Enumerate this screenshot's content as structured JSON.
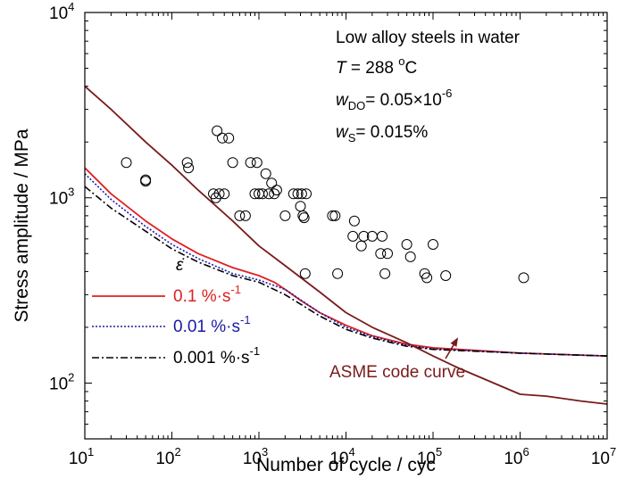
{
  "chart_data": {
    "type": "line",
    "title": "",
    "xlabel": "Number of cycle / cyc",
    "ylabel": "Stress amplitude / MPa",
    "xscale": "log",
    "yscale": "log",
    "xlim": [
      10,
      10000000
    ],
    "ylim": [
      50,
      10000
    ],
    "grid": false,
    "x_ticks": [
      {
        "base": "10",
        "exp": "1",
        "value": 10
      },
      {
        "base": "10",
        "exp": "2",
        "value": 100
      },
      {
        "base": "10",
        "exp": "3",
        "value": 1000
      },
      {
        "base": "10",
        "exp": "4",
        "value": 10000
      },
      {
        "base": "10",
        "exp": "5",
        "value": 100000
      },
      {
        "base": "10",
        "exp": "6",
        "value": 1000000
      },
      {
        "base": "10",
        "exp": "7",
        "value": 10000000
      }
    ],
    "y_ticks": [
      {
        "base": "10",
        "exp": "2",
        "value": 100
      },
      {
        "base": "10",
        "exp": "3",
        "value": 1000
      },
      {
        "base": "10",
        "exp": "4",
        "value": 10000
      }
    ],
    "annotation": {
      "line1": "Low alloy steels in water",
      "line2": {
        "sym": "T",
        "rest": " = 288 ",
        "sup": "o",
        "unit": "C"
      },
      "line3": {
        "sym": "w",
        "sub": "DO",
        "rest": "= 0.05×10",
        "sup": "-6"
      },
      "line4": {
        "sym": "w",
        "sub": "S",
        "rest": "= 0.015%"
      }
    },
    "legend": {
      "placement": "bottom-left",
      "symbol": "ε̇",
      "entries": [
        {
          "base": "0.1 %·s",
          "sup": "-1",
          "color": "#e02020",
          "dash": "solid"
        },
        {
          "base": "0.01 %·s",
          "sup": "-1",
          "color": "#1a1aa6",
          "dash": "dotted"
        },
        {
          "base": "0.001 %·s",
          "sup": "-1",
          "color": "#000000",
          "dash": "dashdot"
        }
      ]
    },
    "asme_label": "ASME code curve",
    "series": [
      {
        "name": "ASME code curve",
        "color": "#7a1a1a",
        "dash": "solid",
        "x": [
          10,
          20,
          50,
          100,
          200,
          500,
          1000,
          2000,
          5000,
          10000,
          20000,
          50000,
          100000,
          200000,
          500000,
          1000000,
          2000000,
          5000000,
          10000000
        ],
        "y": [
          4000,
          3000,
          2000,
          1500,
          1100,
          750,
          550,
          430,
          310,
          240,
          200,
          165,
          140,
          120,
          100,
          87,
          85,
          80,
          77
        ]
      },
      {
        "name": "0.1 %·s-1",
        "color": "#e02020",
        "dash": "solid",
        "x": [
          10,
          20,
          50,
          100,
          200,
          500,
          1000,
          1500,
          2000,
          3000,
          5000,
          10000,
          20000,
          50000,
          100000,
          1000000,
          10000000
        ],
        "y": [
          1450,
          1050,
          750,
          600,
          500,
          420,
          380,
          350,
          320,
          280,
          240,
          205,
          180,
          162,
          155,
          145,
          140
        ]
      },
      {
        "name": "0.01 %·s-1",
        "color": "#1a1aa6",
        "dash": "dotted",
        "x": [
          10,
          20,
          50,
          100,
          200,
          500,
          1000,
          2000,
          5000,
          10000,
          20000,
          50000,
          100000,
          1000000,
          10000000
        ],
        "y": [
          1350,
          980,
          700,
          560,
          470,
          390,
          360,
          320,
          240,
          200,
          178,
          160,
          153,
          145,
          140
        ]
      },
      {
        "name": "0.001 %·s-1",
        "color": "#000000",
        "dash": "dashdot",
        "x": [
          10,
          20,
          50,
          100,
          200,
          500,
          1000,
          2000,
          5000,
          10000,
          20000,
          50000,
          100000,
          1000000,
          10000000
        ],
        "y": [
          1150,
          880,
          660,
          530,
          450,
          380,
          350,
          300,
          230,
          195,
          175,
          158,
          152,
          145,
          140
        ]
      }
    ],
    "scatter": {
      "name": "",
      "marker": "open-circle",
      "points": [
        [
          30,
          1550
        ],
        [
          50,
          1250
        ],
        [
          50,
          1230
        ],
        [
          150,
          1550
        ],
        [
          155,
          1450
        ],
        [
          300,
          1050
        ],
        [
          320,
          1000
        ],
        [
          330,
          2300
        ],
        [
          350,
          1050
        ],
        [
          380,
          2100
        ],
        [
          400,
          1050
        ],
        [
          450,
          2100
        ],
        [
          500,
          1550
        ],
        [
          600,
          800
        ],
        [
          700,
          800
        ],
        [
          800,
          1550
        ],
        [
          900,
          1050
        ],
        [
          950,
          1550
        ],
        [
          1000,
          1050
        ],
        [
          1100,
          1050
        ],
        [
          1200,
          1350
        ],
        [
          1300,
          1050
        ],
        [
          1400,
          1200
        ],
        [
          1500,
          1050
        ],
        [
          1600,
          1100
        ],
        [
          2000,
          800
        ],
        [
          2500,
          1050
        ],
        [
          2800,
          1050
        ],
        [
          3000,
          900
        ],
        [
          3100,
          1050
        ],
        [
          3200,
          800
        ],
        [
          3300,
          780
        ],
        [
          3400,
          390
        ],
        [
          3500,
          1050
        ],
        [
          7000,
          800
        ],
        [
          7500,
          800
        ],
        [
          8000,
          390
        ],
        [
          12000,
          620
        ],
        [
          12500,
          750
        ],
        [
          15000,
          550
        ],
        [
          16000,
          620
        ],
        [
          20000,
          620
        ],
        [
          25000,
          500
        ],
        [
          26000,
          620
        ],
        [
          28000,
          390
        ],
        [
          30000,
          500
        ],
        [
          50000,
          560
        ],
        [
          55000,
          480
        ],
        [
          80000,
          390
        ],
        [
          85000,
          370
        ],
        [
          100000,
          560
        ],
        [
          140000,
          380
        ],
        [
          1100000,
          370
        ]
      ]
    }
  }
}
